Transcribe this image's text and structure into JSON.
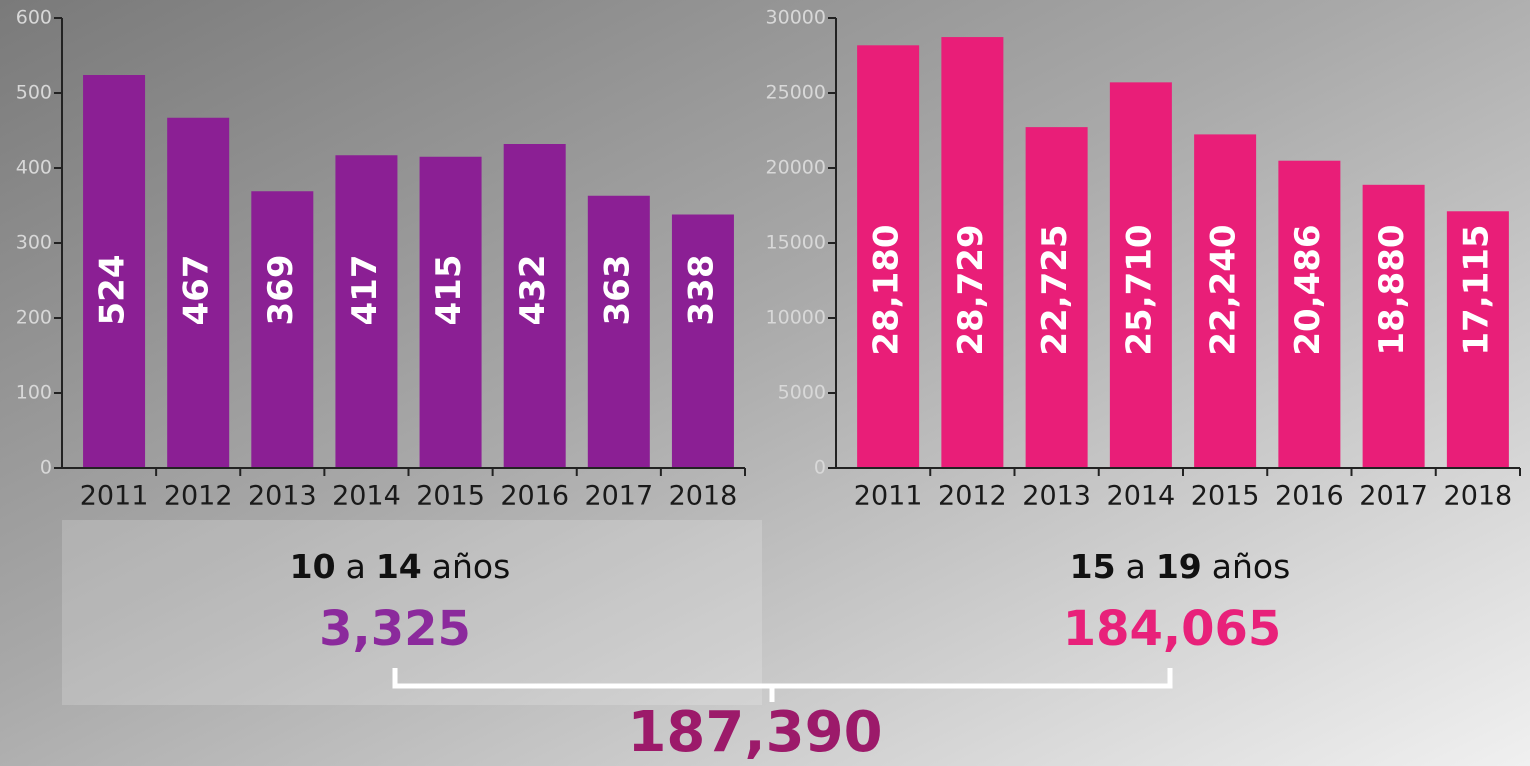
{
  "chart_data": [
    {
      "type": "bar",
      "categories": [
        "2011",
        "2012",
        "2013",
        "2014",
        "2015",
        "2016",
        "2017",
        "2018"
      ],
      "values": [
        524,
        467,
        369,
        417,
        415,
        432,
        363,
        338
      ],
      "color": "#8b1f94",
      "ylim": [
        0,
        600
      ],
      "yticks": [
        0,
        100,
        200,
        300,
        400,
        500,
        600
      ]
    },
    {
      "type": "bar",
      "categories": [
        "2011",
        "2012",
        "2013",
        "2014",
        "2015",
        "2016",
        "2017",
        "2018"
      ],
      "values": [
        28180,
        28729,
        22725,
        25710,
        22240,
        20486,
        18880,
        17115
      ],
      "value_labels": [
        "28,180",
        "28,729",
        "22,725",
        "25,710",
        "22,240",
        "20,486",
        "18,880",
        "17,115"
      ],
      "color": "#e91e78",
      "ylim": [
        0,
        30000
      ],
      "yticks": [
        0,
        5000,
        10000,
        15000,
        20000,
        25000,
        30000
      ]
    }
  ],
  "summary": {
    "groups": [
      {
        "parts": [
          "10",
          "a",
          "14",
          "años"
        ],
        "total": "3,325",
        "color": "#8b2a9c"
      },
      {
        "parts": [
          "15",
          "a",
          "19",
          "años"
        ],
        "total": "184,065",
        "color": "#e8217a"
      }
    ],
    "grand_total": "187,390",
    "grand_color": "#9c1a6a"
  }
}
